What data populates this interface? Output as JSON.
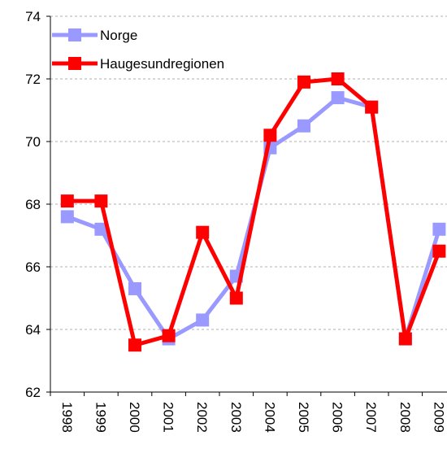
{
  "chart_data": {
    "type": "line",
    "categories": [
      "1998",
      "1999",
      "2000",
      "2001",
      "2002",
      "2003",
      "2004",
      "2005",
      "2006",
      "2007",
      "2008",
      "2009"
    ],
    "series": [
      {
        "name": "Norge",
        "color": "#9999ff",
        "values": [
          67.6,
          67.2,
          65.3,
          63.7,
          64.3,
          65.7,
          69.8,
          70.5,
          71.4,
          71.1,
          63.7,
          67.2
        ]
      },
      {
        "name": "Haugesundregionen",
        "color": "#ff0000",
        "values": [
          68.1,
          68.1,
          63.5,
          63.8,
          67.1,
          65.0,
          70.2,
          71.9,
          72.0,
          71.1,
          63.7,
          66.5
        ]
      }
    ],
    "ylim": [
      62,
      74
    ],
    "yticks": [
      62,
      64,
      66,
      68,
      70,
      72,
      74
    ],
    "grid": true,
    "legend": "top-left"
  }
}
